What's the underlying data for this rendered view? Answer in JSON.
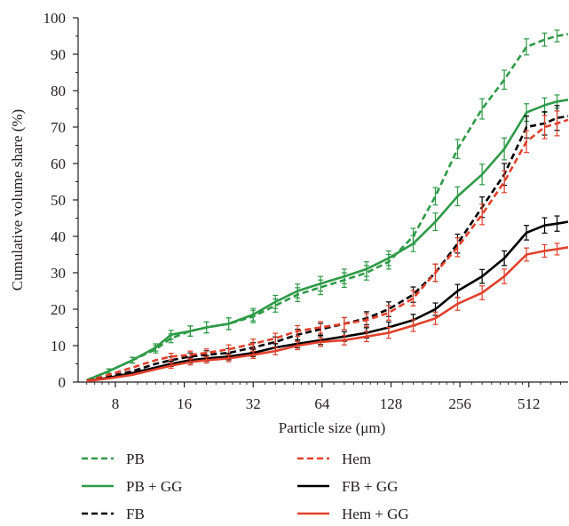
{
  "chart_data": {
    "type": "line",
    "xlabel": "Particle size (μm)",
    "ylabel": "Cumulative volume share (%)",
    "x_scale": "log2",
    "xlim": [
      5.5,
      760
    ],
    "ylim": [
      0,
      100
    ],
    "x_ticks": [
      8,
      16,
      32,
      64,
      128,
      256,
      512
    ],
    "y_ticks": [
      0,
      10,
      20,
      30,
      40,
      50,
      60,
      70,
      80,
      90,
      100
    ],
    "legend": "bottom",
    "series": [
      {
        "name": "PB",
        "color": "#2e9a47",
        "dash": true,
        "x": [
          6,
          7.5,
          9.5,
          12,
          14,
          17,
          20,
          25,
          32,
          40,
          50,
          63,
          80,
          100,
          125,
          160,
          200,
          250,
          320,
          400,
          500,
          600,
          680,
          760
        ],
        "y": [
          0.5,
          3,
          6,
          9,
          12,
          14,
          15,
          16,
          18,
          21,
          24,
          26,
          28,
          30,
          33,
          40,
          51,
          64,
          75,
          83,
          92,
          94,
          95,
          95.5
        ],
        "err": [
          0.5,
          0.6,
          0.8,
          1.0,
          1.2,
          1.4,
          1.5,
          1.6,
          1.7,
          1.8,
          1.9,
          2.0,
          2.0,
          2.0,
          2.0,
          2.2,
          2.4,
          2.6,
          2.8,
          2.6,
          2.2,
          1.8,
          1.6,
          1.5
        ],
        "err_from": 1
      },
      {
        "name": "PB + GG",
        "color": "#2e9a47",
        "dash": false,
        "x": [
          6,
          7.5,
          9.5,
          12,
          14,
          17,
          20,
          25,
          32,
          40,
          50,
          63,
          80,
          100,
          125,
          160,
          200,
          250,
          320,
          400,
          500,
          600,
          680,
          760
        ],
        "y": [
          0.5,
          3,
          6,
          9.5,
          13,
          14,
          15,
          16,
          18.5,
          22,
          25,
          27,
          29,
          31,
          34,
          38,
          44,
          51,
          57,
          64,
          74,
          76,
          77,
          77.5
        ],
        "err": [
          0.5,
          0.6,
          0.8,
          1.0,
          1.2,
          1.4,
          1.5,
          1.6,
          1.7,
          1.8,
          1.9,
          2.0,
          2.0,
          2.0,
          2.0,
          2.2,
          2.4,
          2.6,
          2.8,
          3.0,
          2.4,
          2.0,
          1.8,
          1.7
        ],
        "err_from": 1
      },
      {
        "name": "FB",
        "color": "#000000",
        "dash": true,
        "x": [
          6,
          7.5,
          9.5,
          12,
          14,
          17,
          20,
          25,
          32,
          40,
          50,
          63,
          80,
          100,
          125,
          160,
          200,
          250,
          320,
          400,
          500,
          600,
          680,
          760
        ],
        "y": [
          0.3,
          1.5,
          3,
          5,
          6,
          7,
          7.5,
          8,
          9.5,
          11,
          13,
          14.5,
          16,
          17.5,
          20,
          24,
          30,
          38,
          48,
          57,
          70,
          71,
          72.5,
          73
        ],
        "err": [
          0.3,
          0.4,
          0.6,
          0.8,
          0.9,
          1.0,
          1.1,
          1.2,
          1.3,
          1.4,
          1.5,
          1.6,
          1.7,
          1.8,
          2.0,
          2.1,
          2.4,
          2.6,
          2.8,
          3.0,
          3.0,
          3.2,
          3.4,
          3.5
        ],
        "err_from": 4
      },
      {
        "name": "Hem",
        "color": "#e2402b",
        "dash": true,
        "x": [
          6,
          7.5,
          9.5,
          12,
          14,
          17,
          20,
          25,
          32,
          40,
          50,
          63,
          80,
          100,
          125,
          160,
          200,
          250,
          320,
          400,
          500,
          600,
          680,
          760
        ],
        "y": [
          0.3,
          2,
          4,
          6,
          7,
          7.5,
          8,
          9,
          10.5,
          12,
          14,
          15,
          16,
          17,
          19,
          23,
          30,
          37,
          46,
          55,
          66,
          70,
          71,
          72
        ],
        "err": [
          0.3,
          0.4,
          0.6,
          0.8,
          0.9,
          1.0,
          1.1,
          1.2,
          1.3,
          1.4,
          1.5,
          1.6,
          1.7,
          1.8,
          2.0,
          2.1,
          2.4,
          2.6,
          2.8,
          3.0,
          3.0,
          3.2,
          3.4,
          3.5
        ],
        "err_from": 4
      },
      {
        "name": "FB + GG",
        "color": "#000000",
        "dash": false,
        "x": [
          6,
          7.5,
          9.5,
          12,
          14,
          17,
          20,
          25,
          32,
          40,
          50,
          63,
          80,
          100,
          125,
          160,
          200,
          250,
          320,
          400,
          500,
          600,
          680,
          760
        ],
        "y": [
          0.3,
          1.2,
          2.5,
          4,
          5,
          6,
          6.5,
          7,
          8,
          9.5,
          10.5,
          11.5,
          12.5,
          13.5,
          15,
          17,
          20,
          25,
          29,
          34,
          41,
          43,
          43.5,
          44
        ],
        "err": [
          0.3,
          0.4,
          0.5,
          0.6,
          0.7,
          0.8,
          0.8,
          0.9,
          1.0,
          1.0,
          1.1,
          1.2,
          1.3,
          1.4,
          1.5,
          1.6,
          1.7,
          1.8,
          1.9,
          2.0,
          2.0,
          2.1,
          2.1,
          2.2
        ],
        "err_from": 4
      },
      {
        "name": "Hem + GG",
        "color": "#e2402b",
        "dash": false,
        "x": [
          6,
          7.5,
          9.5,
          12,
          14,
          17,
          20,
          25,
          32,
          40,
          50,
          63,
          80,
          100,
          125,
          160,
          200,
          250,
          320,
          400,
          500,
          600,
          680,
          760
        ],
        "y": [
          0.3,
          1,
          2,
          3.5,
          4.5,
          5.5,
          6,
          6.5,
          7.5,
          8.5,
          10,
          11,
          11.5,
          12.5,
          13.5,
          15.5,
          17.5,
          21.5,
          24.5,
          29,
          35,
          36,
          36.5,
          37
        ],
        "err": [
          0.3,
          0.4,
          0.5,
          0.6,
          0.7,
          0.8,
          0.8,
          0.9,
          1.0,
          1.0,
          1.1,
          1.2,
          1.3,
          1.4,
          1.5,
          1.6,
          1.7,
          1.8,
          1.9,
          2.0,
          1.8,
          1.7,
          1.6,
          1.6
        ],
        "err_from": 4
      }
    ]
  }
}
